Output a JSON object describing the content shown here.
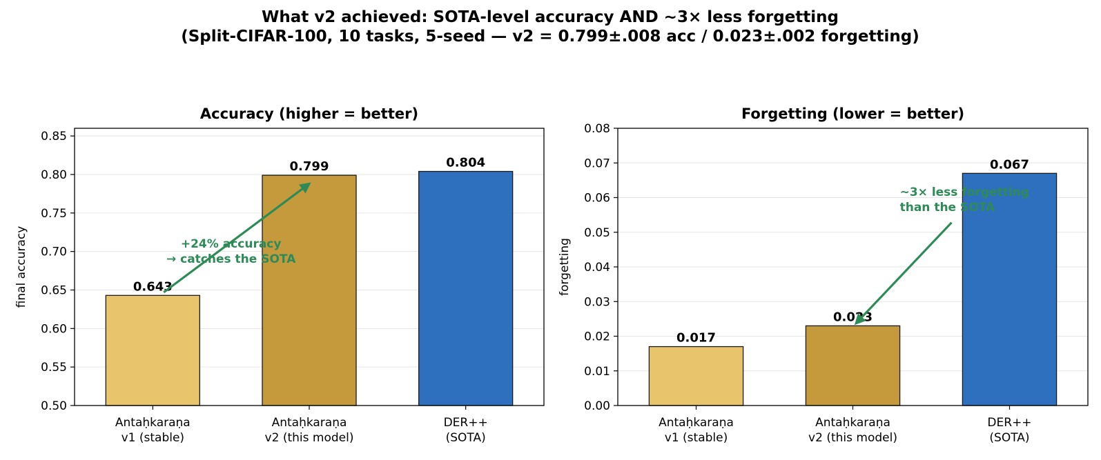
{
  "suptitle": {
    "line1": "What v2 achieved: SOTA-level accuracy AND ~3× less forgetting",
    "line2": "(Split-CIFAR-100, 10 tasks, 5-seed — v2 = 0.799±.008 acc / 0.023±.002 forgetting)"
  },
  "colors": {
    "v1": "#e8c46c",
    "v2": "#c49a3c",
    "sota": "#2e70bd",
    "annotation": "#2e8b57",
    "grid": "#e6e6e6"
  },
  "chart_data": [
    {
      "type": "bar",
      "title": "Accuracy  (higher = better)",
      "xlabel": "",
      "ylabel": "final accuracy",
      "categories": [
        [
          "Antaḥkaraṇa",
          "v1 (stable)"
        ],
        [
          "Antaḥkaraṇa",
          "v2 (this model)"
        ],
        [
          "DER++",
          "(SOTA)"
        ]
      ],
      "values": [
        0.643,
        0.799,
        0.804
      ],
      "value_labels": [
        "0.643",
        "0.799",
        "0.804"
      ],
      "ylim": [
        0.5,
        0.86
      ],
      "yticks": [
        0.5,
        0.55,
        0.6,
        0.65,
        0.7,
        0.75,
        0.8,
        0.85
      ],
      "ytick_labels": [
        "0.50",
        "0.55",
        "0.60",
        "0.65",
        "0.70",
        "0.75",
        "0.80",
        "0.85"
      ],
      "grid": "y",
      "annotation": {
        "lines": [
          "+24% accuracy",
          "→ catches the SOTA"
        ],
        "text_at": [
          0.5,
          0.705
        ],
        "arrow_from": [
          0.07,
          0.647
        ],
        "arrow_to": [
          1.0,
          0.788
        ]
      }
    },
    {
      "type": "bar",
      "title": "Forgetting  (lower = better)",
      "xlabel": "",
      "ylabel": "forgetting",
      "categories": [
        [
          "Antaḥkaraṇa",
          "v1 (stable)"
        ],
        [
          "Antaḥkaraṇa",
          "v2 (this model)"
        ],
        [
          "DER++",
          "(SOTA)"
        ]
      ],
      "values": [
        0.017,
        0.023,
        0.067
      ],
      "value_labels": [
        "0.017",
        "0.023",
        "0.067"
      ],
      "ylim": [
        0.0,
        0.08
      ],
      "yticks": [
        0.0,
        0.01,
        0.02,
        0.03,
        0.04,
        0.05,
        0.06,
        0.07,
        0.08
      ],
      "ytick_labels": [
        "0.00",
        "0.01",
        "0.02",
        "0.03",
        "0.04",
        "0.05",
        "0.06",
        "0.07",
        "0.08"
      ],
      "grid": "y",
      "annotation": {
        "lines": [
          "~3× less forgetting",
          "than the SOTA"
        ],
        "text_at": [
          1.3,
          0.0605
        ],
        "arrow_from": [
          1.63,
          0.0528
        ],
        "arrow_to": [
          1.02,
          0.0237
        ]
      }
    }
  ]
}
